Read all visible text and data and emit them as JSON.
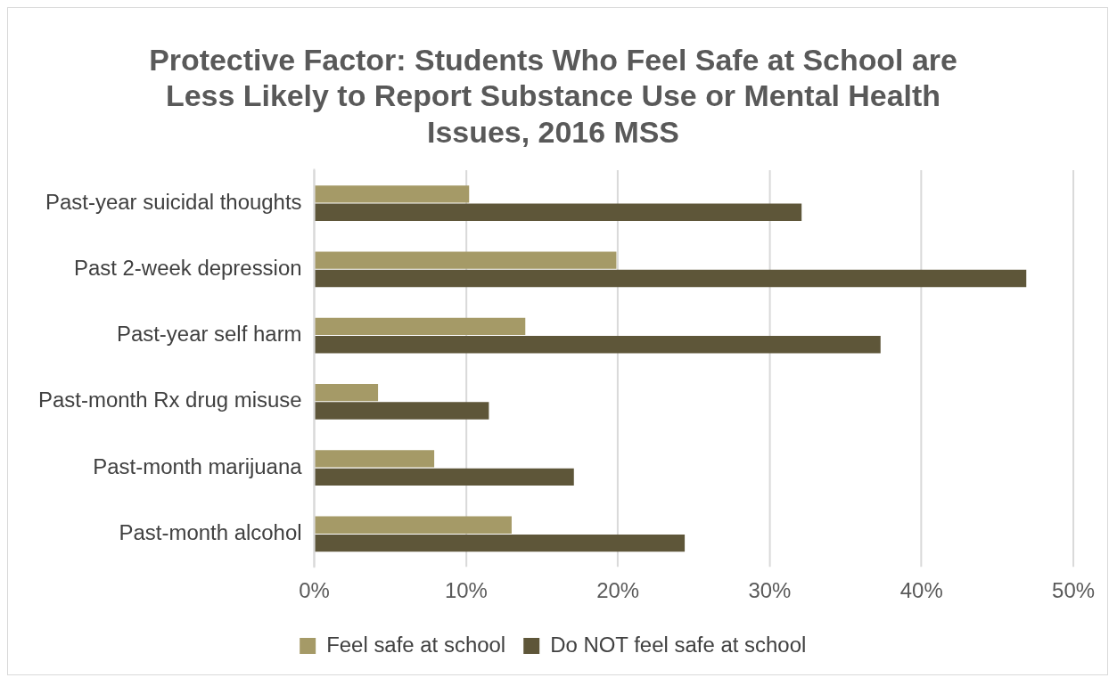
{
  "chart_data": {
    "type": "bar",
    "orientation": "horizontal",
    "title": "Protective Factor: Students Who Feel Safe at School are Less Likely to Report Substance Use or Mental Health Issues, 2016 MSS",
    "categories": [
      "Past-year suicidal thoughts",
      "Past 2-week depression",
      "Past-year self harm",
      "Past-month Rx drug misuse",
      "Past-month marijuana",
      "Past-month alcohol"
    ],
    "series": [
      {
        "name": "Feel safe at school",
        "color": "#a59a67",
        "values": [
          10.2,
          19.9,
          13.9,
          4.2,
          7.9,
          13.0
        ]
      },
      {
        "name": "Do NOT feel safe at school",
        "color": "#5e5639",
        "values": [
          32.1,
          46.9,
          37.3,
          11.5,
          17.1,
          24.4
        ]
      }
    ],
    "xlim": [
      0,
      50
    ],
    "xticks": [
      {
        "value": 0,
        "label": "0%"
      },
      {
        "value": 10,
        "label": "10%"
      },
      {
        "value": 20,
        "label": "20%"
      },
      {
        "value": 30,
        "label": "30%"
      },
      {
        "value": 40,
        "label": "40%"
      },
      {
        "value": 50,
        "label": "50%"
      }
    ],
    "grid": "x",
    "legend": "bottom"
  }
}
